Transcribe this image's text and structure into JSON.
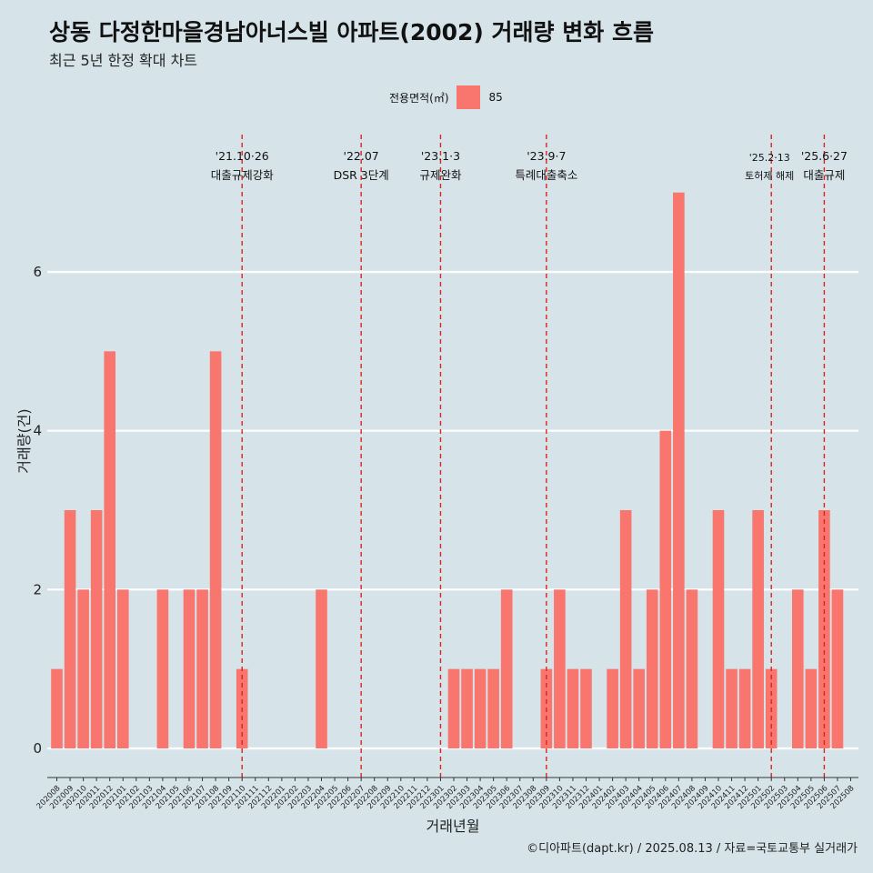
{
  "header": {
    "title": "상동 다정한마을경남아너스빌 아파트(2002) 거래량 변화 흐름",
    "subtitle": "최근 5년 한정 확대 차트"
  },
  "legend": {
    "title": "전용면적(㎡)",
    "item": "85",
    "color": "#f8766d"
  },
  "caption": "©디아파트(dapt.kr) / 2025.08.13 / 자료=국토교통부 실거래가",
  "chart_data": {
    "type": "bar",
    "xlabel": "거래년월",
    "ylabel": "거래량(건)",
    "ylim": [
      0,
      7.5
    ],
    "yticks": [
      0,
      2,
      4,
      6
    ],
    "grid": "horizontal",
    "legend_position": "top",
    "bar_color": "#f8766d",
    "categories": [
      "202008",
      "202009",
      "202010",
      "202011",
      "202012",
      "202101",
      "202102",
      "202103",
      "202104",
      "202105",
      "202106",
      "202107",
      "202108",
      "202109",
      "202110",
      "202111",
      "202112",
      "202201",
      "202202",
      "202203",
      "202204",
      "202205",
      "202206",
      "202207",
      "202208",
      "202209",
      "202210",
      "202211",
      "202212",
      "202301",
      "202302",
      "202303",
      "202304",
      "202305",
      "202306",
      "202307",
      "202308",
      "202309",
      "202310",
      "202311",
      "202312",
      "202401",
      "202402",
      "202403",
      "202404",
      "202405",
      "202406",
      "202407",
      "202408",
      "202409",
      "202410",
      "202411",
      "202412",
      "202501",
      "202502",
      "202503",
      "202504",
      "202505",
      "202506",
      "202507",
      "202508"
    ],
    "series": [
      {
        "name": "85",
        "values": [
          1,
          3,
          2,
          3,
          5,
          2,
          0,
          0,
          2,
          0,
          2,
          2,
          5,
          0,
          1,
          0,
          0,
          0,
          0,
          0,
          2,
          0,
          0,
          0,
          0,
          0,
          0,
          0,
          0,
          0,
          1,
          1,
          1,
          1,
          2,
          0,
          0,
          1,
          2,
          1,
          1,
          0,
          1,
          3,
          1,
          2,
          4,
          7,
          2,
          0,
          3,
          1,
          1,
          3,
          1,
          0,
          2,
          1,
          3,
          2,
          0
        ]
      }
    ],
    "events": [
      {
        "category": "202110",
        "date": "'21.10·26",
        "label": "대출규제강화"
      },
      {
        "category": "202207",
        "date": "'22.07",
        "label": "DSR 3단계"
      },
      {
        "category": "202301",
        "date": "'23.1·3",
        "label": "규제완화"
      },
      {
        "category": "202309",
        "date": "'23.9·7",
        "label": "특례대출축소"
      },
      {
        "category": "202502",
        "date": "'25.2·13",
        "label": "토허제 해제"
      },
      {
        "category": "202506",
        "date": "'25.6·27",
        "label": "대출규제"
      }
    ]
  }
}
